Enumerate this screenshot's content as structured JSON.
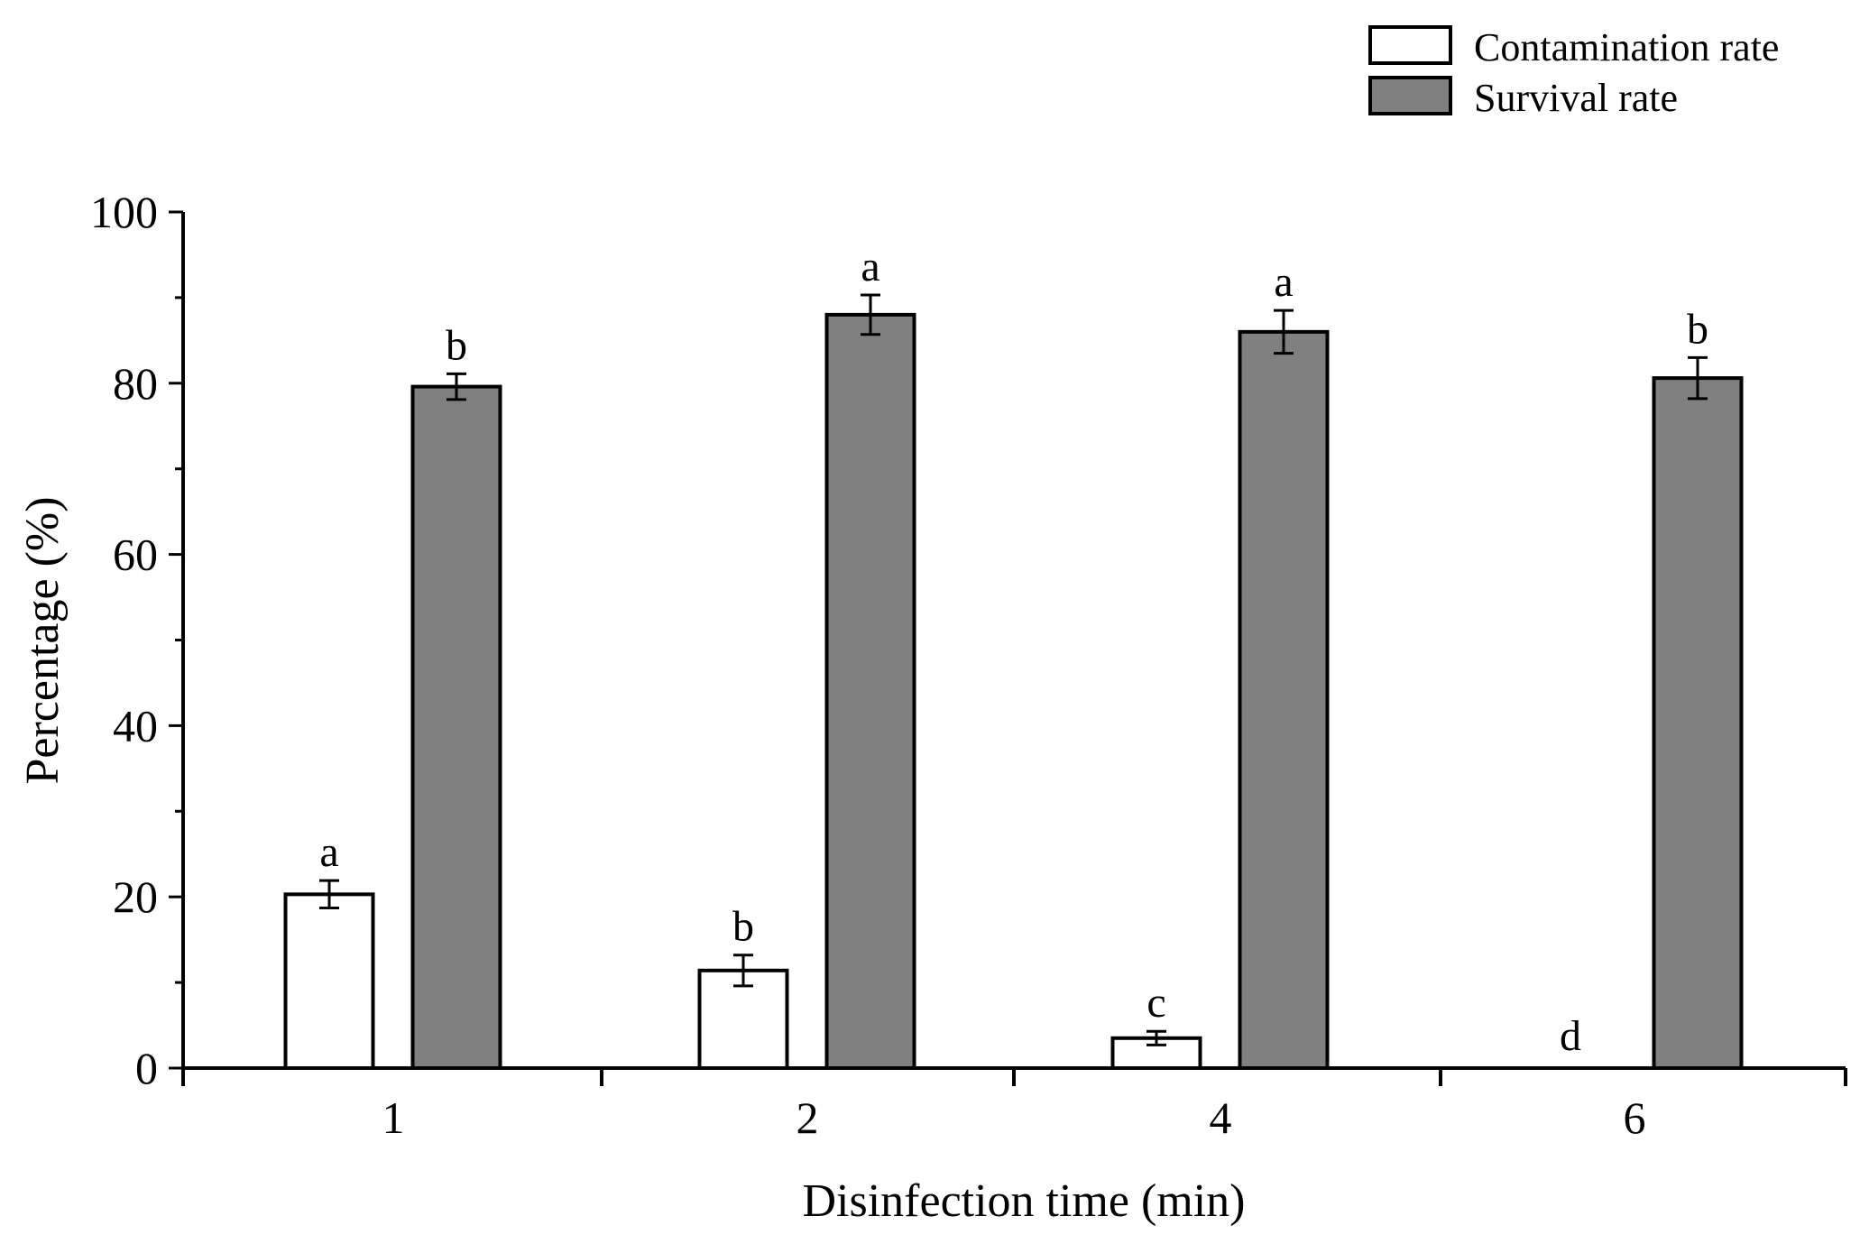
{
  "chart_data": {
    "type": "bar",
    "title": "",
    "xlabel": "Disinfection time (min)",
    "ylabel": "Percentage (%)",
    "categories": [
      "1",
      "2",
      "4",
      "6"
    ],
    "ylim": [
      0,
      100
    ],
    "yticks": [
      0,
      20,
      40,
      60,
      80,
      100
    ],
    "legend_position": "top-right",
    "series": [
      {
        "name": "Contamination rate",
        "color": "#ffffff",
        "values": [
          20.3,
          11.4,
          3.5,
          0
        ],
        "errors": [
          1.6,
          1.8,
          0.8,
          0
        ],
        "significance": [
          "a",
          "b",
          "c",
          "d"
        ]
      },
      {
        "name": "Survival rate",
        "color": "#808080",
        "values": [
          79.6,
          88.0,
          86.0,
          80.6
        ],
        "errors": [
          1.5,
          2.3,
          2.5,
          2.4
        ],
        "significance": [
          "b",
          "a",
          "a",
          "b"
        ]
      }
    ]
  }
}
